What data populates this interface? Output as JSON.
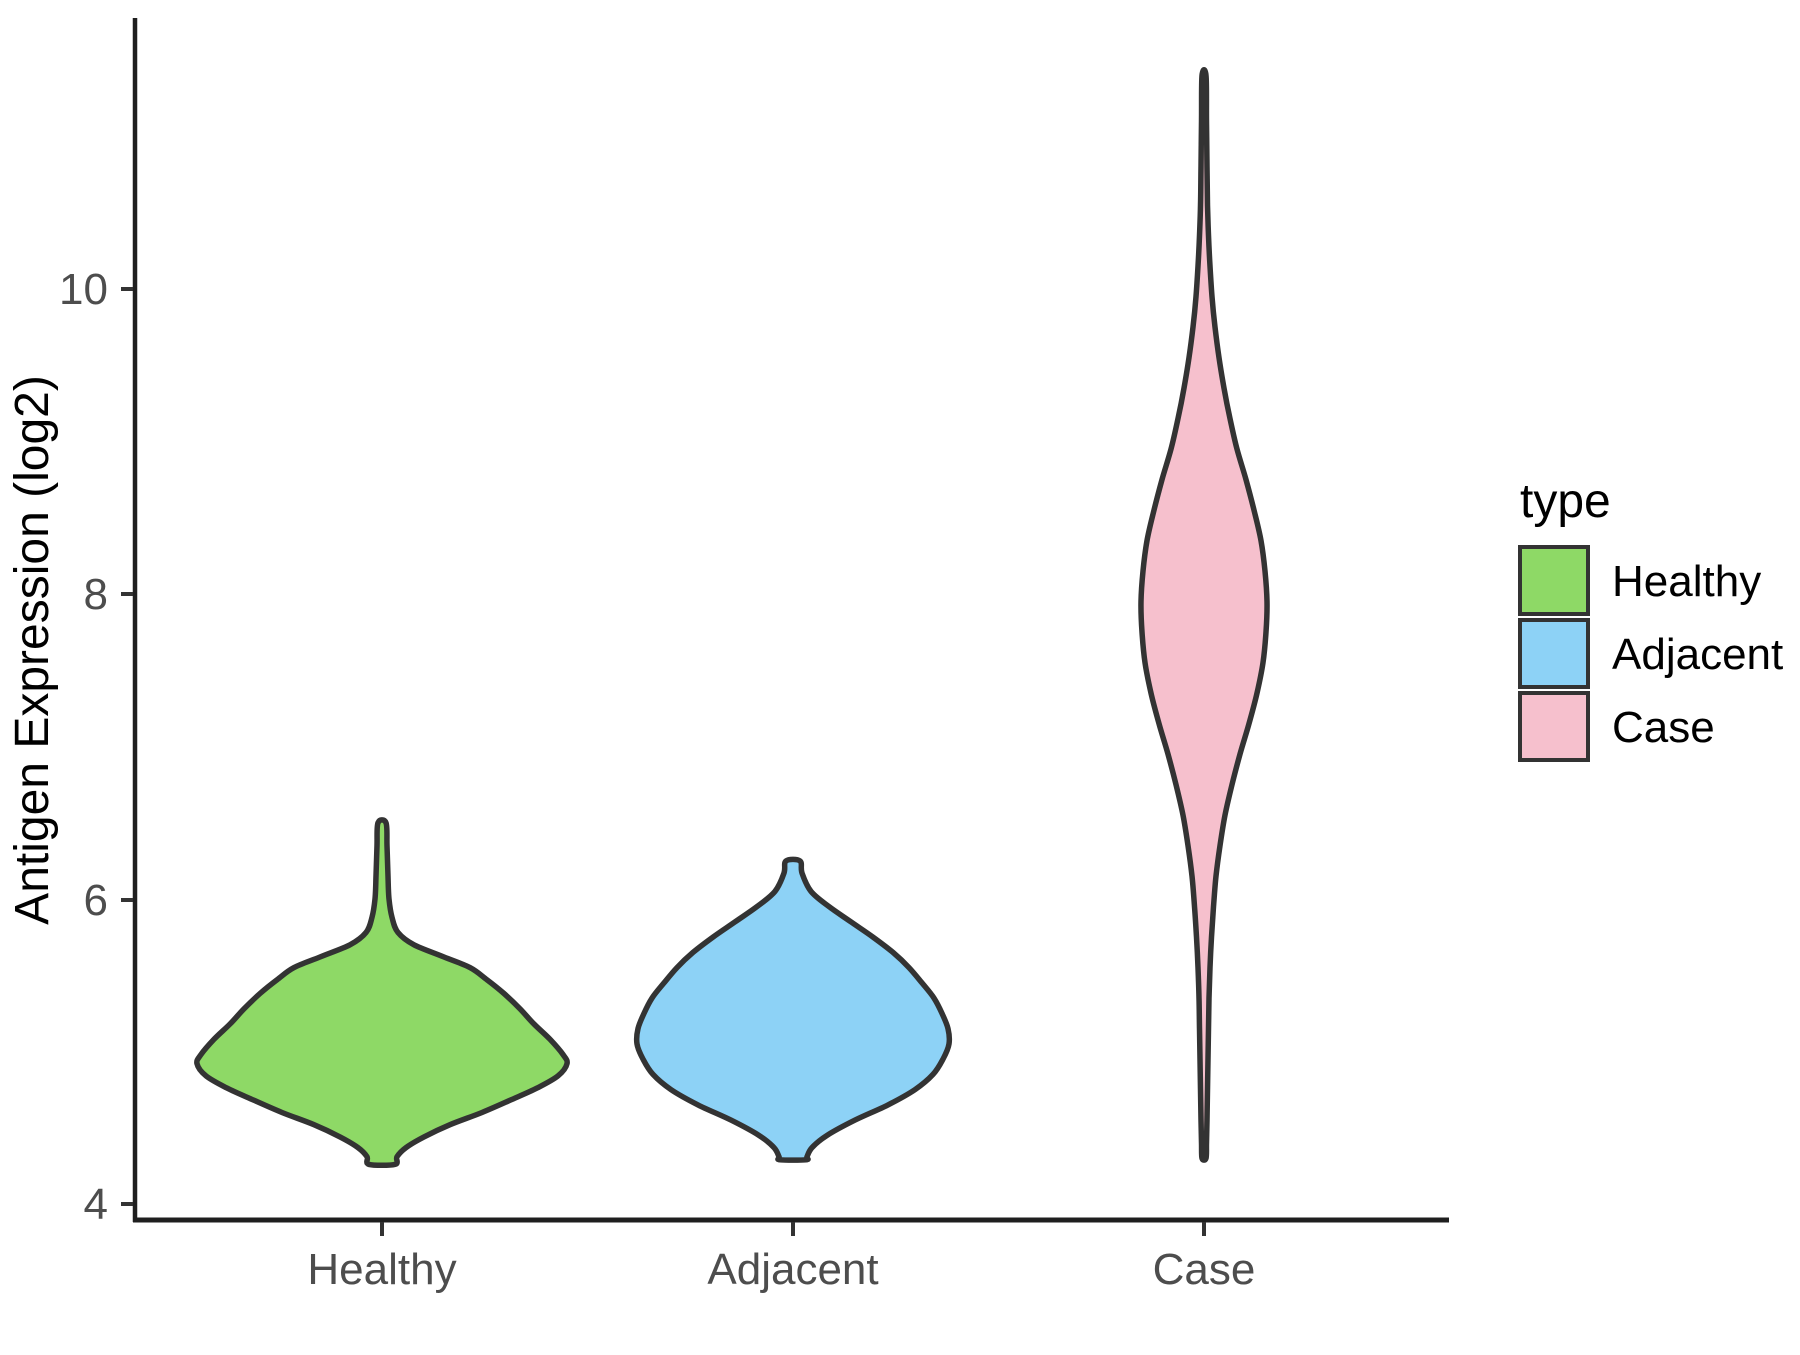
{
  "figure": {
    "background": "#ffffff",
    "axis_color": "#1F1F1F",
    "tick_color": "#333333",
    "tick_text_color": "#4D4D4D",
    "violin_stroke_color": "#333333"
  },
  "y_axis": {
    "title": "Antigen Expression (log2)",
    "tick_labels": [
      "10",
      "8",
      "6",
      "4"
    ]
  },
  "x_axis": {
    "title": "",
    "tick_labels": [
      "Healthy",
      "Adjacent",
      "Case"
    ]
  },
  "legend": {
    "title": "type",
    "position": "right",
    "entries": [
      {
        "label": "Healthy",
        "color": "#8ED966"
      },
      {
        "label": "Adjacent",
        "color": "#8DD2F6"
      },
      {
        "label": "Case",
        "color": "#F6C0CD"
      }
    ]
  },
  "chart_data": {
    "type": "violin",
    "title": "",
    "xlabel": "",
    "ylabel": "Antigen Expression (log2)",
    "categories": [
      "Healthy",
      "Adjacent",
      "Case"
    ],
    "y_ticks": [
      4,
      6,
      8,
      10
    ],
    "y_tick_labels": [
      "10",
      "8",
      "6",
      "4"
    ],
    "ylim": [
      3.9,
      11.8
    ],
    "grid": false,
    "legend_title": "type",
    "series": [
      {
        "name": "Healthy",
        "color": "#8ED966",
        "value_range": [
          4.25,
          6.5
        ],
        "peak_value": 4.93,
        "profile": [
          [
            6.5,
            4
          ],
          [
            6.35,
            5
          ],
          [
            6.15,
            6
          ],
          [
            6.0,
            7
          ],
          [
            5.88,
            10
          ],
          [
            5.78,
            16
          ],
          [
            5.7,
            32
          ],
          [
            5.62,
            62
          ],
          [
            5.55,
            88
          ],
          [
            5.47,
            105
          ],
          [
            5.38,
            122
          ],
          [
            5.28,
            138
          ],
          [
            5.18,
            152
          ],
          [
            5.08,
            168
          ],
          [
            4.98,
            181
          ],
          [
            4.92,
            185
          ],
          [
            4.84,
            176
          ],
          [
            4.76,
            155
          ],
          [
            4.68,
            128
          ],
          [
            4.6,
            100
          ],
          [
            4.52,
            68
          ],
          [
            4.44,
            42
          ],
          [
            4.37,
            24
          ],
          [
            4.31,
            15
          ],
          [
            4.26,
            13
          ]
        ]
      },
      {
        "name": "Adjacent",
        "color": "#8DD2F6",
        "value_range": [
          4.29,
          6.25
        ],
        "peak_value": 5.05,
        "profile": [
          [
            6.25,
            7
          ],
          [
            6.17,
            9
          ],
          [
            6.05,
            18
          ],
          [
            5.95,
            36
          ],
          [
            5.85,
            58
          ],
          [
            5.75,
            80
          ],
          [
            5.65,
            100
          ],
          [
            5.55,
            116
          ],
          [
            5.45,
            129
          ],
          [
            5.35,
            141
          ],
          [
            5.25,
            149
          ],
          [
            5.15,
            155
          ],
          [
            5.05,
            156
          ],
          [
            4.95,
            150
          ],
          [
            4.85,
            140
          ],
          [
            4.75,
            122
          ],
          [
            4.65,
            95
          ],
          [
            4.55,
            62
          ],
          [
            4.45,
            34
          ],
          [
            4.37,
            19
          ],
          [
            4.31,
            14
          ],
          [
            4.29,
            13
          ]
        ]
      },
      {
        "name": "Case",
        "color": "#F6C0CD",
        "value_range": [
          4.3,
          11.4
        ],
        "peak_value": 7.95,
        "profile": [
          [
            11.4,
            2
          ],
          [
            11.1,
            2.5
          ],
          [
            10.8,
            3
          ],
          [
            10.55,
            3.5
          ],
          [
            10.35,
            4.5
          ],
          [
            10.15,
            6
          ],
          [
            9.95,
            8
          ],
          [
            9.75,
            11
          ],
          [
            9.55,
            15
          ],
          [
            9.35,
            20
          ],
          [
            9.15,
            26
          ],
          [
            8.95,
            33
          ],
          [
            8.75,
            42
          ],
          [
            8.55,
            50
          ],
          [
            8.35,
            57
          ],
          [
            8.15,
            61
          ],
          [
            7.95,
            63
          ],
          [
            7.75,
            62
          ],
          [
            7.55,
            59
          ],
          [
            7.35,
            53
          ],
          [
            7.15,
            45
          ],
          [
            6.95,
            36
          ],
          [
            6.75,
            28
          ],
          [
            6.55,
            21
          ],
          [
            6.35,
            16
          ],
          [
            6.15,
            12
          ],
          [
            5.95,
            9.5
          ],
          [
            5.75,
            7.5
          ],
          [
            5.55,
            6
          ],
          [
            5.35,
            5
          ],
          [
            5.15,
            4.5
          ],
          [
            4.95,
            4
          ],
          [
            4.75,
            3.5
          ],
          [
            4.55,
            3
          ],
          [
            4.4,
            2.5
          ],
          [
            4.3,
            2
          ]
        ]
      }
    ]
  }
}
